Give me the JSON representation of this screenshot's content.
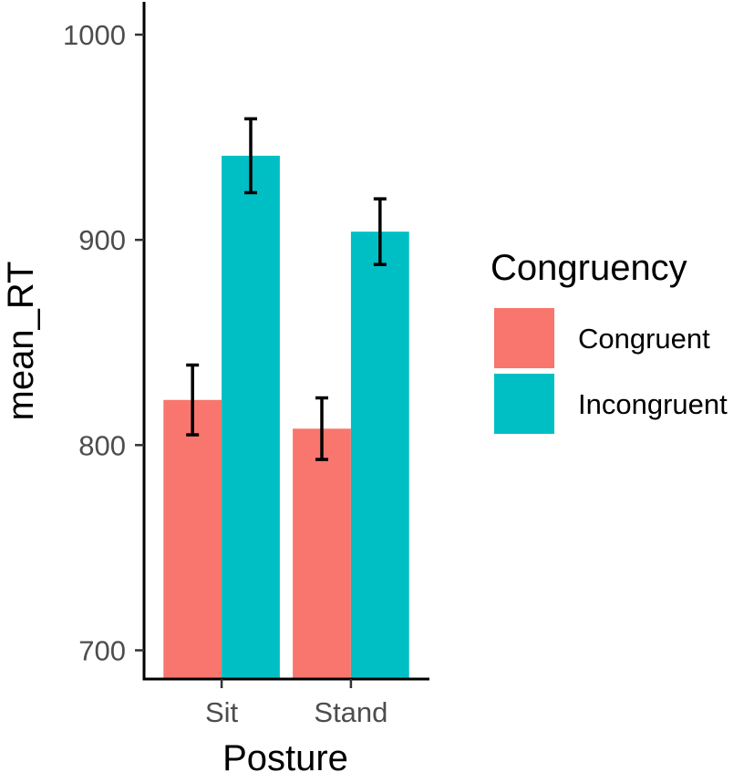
{
  "chart_data": {
    "type": "bar",
    "title": "",
    "xlabel": "Posture",
    "ylabel": "mean_RT",
    "categories": [
      "Sit",
      "Stand"
    ],
    "ylim": [
      686,
      1016
    ],
    "yticks": [
      700,
      800,
      900,
      1000
    ],
    "grid": false,
    "legend_position": "right",
    "legend_title": "Congruency",
    "series": [
      {
        "name": "Congruent",
        "color": "#F8766D",
        "values": [
          822,
          808
        ],
        "error_low": [
          805,
          793
        ],
        "error_high": [
          839,
          823
        ]
      },
      {
        "name": "Incongruent",
        "color": "#00BFC4",
        "values": [
          941,
          904
        ],
        "error_low": [
          923,
          888
        ],
        "error_high": [
          959,
          920
        ]
      }
    ]
  }
}
